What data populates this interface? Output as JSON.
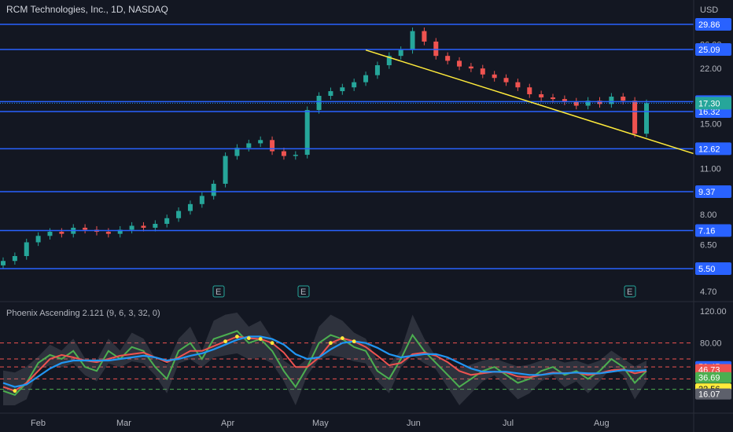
{
  "chart_data": {
    "type": "candlestick",
    "title": "RCM Technologies, Inc., 1D, NASDAQ",
    "currency": "USD",
    "x_ticks": [
      "Feb",
      "Mar",
      "Apr",
      "May",
      "Jun",
      "Jul",
      "Aug"
    ],
    "y_ticks": [
      "26.00",
      "22.00",
      "15.00",
      "11.00",
      "8.00",
      "6.50",
      "4.70"
    ],
    "horizontal_levels": [
      29.86,
      25.09,
      17.49,
      16.32,
      12.62,
      9.37,
      7.16,
      5.5
    ],
    "level_labels": [
      "29.86",
      "25.09",
      "17.49",
      "16.32",
      "12.62",
      "9.37",
      "7.16",
      "5.50"
    ],
    "last_price": "17.30",
    "earnings_marker": "E",
    "earnings_months": [
      "Mar",
      "May",
      "Aug"
    ],
    "colors": {
      "level": "#2962ff",
      "trend": "#ffeb3b",
      "up": "#26a69a",
      "down": "#ef5350"
    },
    "trendline": {
      "from": {
        "month": "May",
        "price": 25.0
      },
      "to": {
        "month": "Aug",
        "price": 12.2
      }
    },
    "price_series_approx": [
      5.8,
      6.0,
      6.6,
      6.9,
      7.1,
      7.0,
      7.3,
      7.2,
      7.1,
      7.0,
      7.2,
      7.4,
      7.3,
      7.5,
      7.8,
      8.2,
      8.6,
      9.1,
      9.9,
      12.0,
      12.7,
      13.1,
      13.4,
      12.4,
      12.0,
      12.1,
      16.5,
      18.2,
      18.8,
      19.3,
      20.0,
      21.0,
      22.5,
      24.0,
      25.0,
      28.5,
      26.5,
      24.0,
      23.2,
      22.3,
      22.0,
      21.1,
      20.6,
      20.0,
      19.3,
      18.4,
      18.0,
      17.8,
      17.5,
      17.0,
      17.6,
      17.2,
      18.1,
      17.6,
      14.0,
      17.3
    ],
    "indicator": {
      "name": "Phoenix Ascending 2.121 (9, 6, 3, 32, 0)",
      "y_tick": "120.00",
      "values": [
        "80.00",
        "50.45",
        "46.73",
        "36.69",
        "22.56",
        "16.07"
      ],
      "value_colors": [
        "#ef5350",
        "#2962ff",
        "#ef5350",
        "#4caf50",
        "#ffeb3b",
        "#5d606b"
      ],
      "series": [
        {
          "color": "#4caf50",
          "values": [
            20,
            15,
            30,
            55,
            65,
            60,
            70,
            50,
            45,
            70,
            60,
            75,
            70,
            50,
            35,
            70,
            80,
            60,
            85,
            90,
            95,
            80,
            85,
            70,
            45,
            25,
            50,
            80,
            90,
            85,
            75,
            70,
            45,
            35,
            60,
            90,
            70,
            55,
            40,
            25,
            35,
            45,
            50,
            40,
            30,
            35,
            45,
            50,
            40,
            45,
            35,
            45,
            60,
            50,
            30,
            45
          ]
        },
        {
          "color": "#ef5350",
          "values": [
            25,
            20,
            30,
            45,
            60,
            65,
            62,
            58,
            56,
            60,
            64,
            66,
            68,
            62,
            56,
            62,
            70,
            70,
            76,
            82,
            88,
            86,
            85,
            80,
            68,
            50,
            50,
            62,
            80,
            86,
            82,
            75,
            64,
            52,
            55,
            66,
            68,
            64,
            56,
            45,
            40,
            42,
            44,
            43,
            38,
            37,
            40,
            43,
            42,
            43,
            40,
            42,
            46,
            47,
            42,
            45
          ]
        },
        {
          "color": "#2196f3",
          "values": [
            30,
            25,
            28,
            38,
            48,
            55,
            58,
            58,
            58,
            58,
            60,
            62,
            64,
            62,
            58,
            60,
            64,
            67,
            72,
            78,
            84,
            88,
            88,
            85,
            78,
            66,
            60,
            62,
            72,
            80,
            82,
            80,
            74,
            66,
            62,
            64,
            66,
            66,
            62,
            55,
            48,
            44,
            44,
            44,
            42,
            40,
            40,
            42,
            42,
            43,
            42,
            42,
            44,
            46,
            45,
            46
          ]
        }
      ]
    }
  }
}
